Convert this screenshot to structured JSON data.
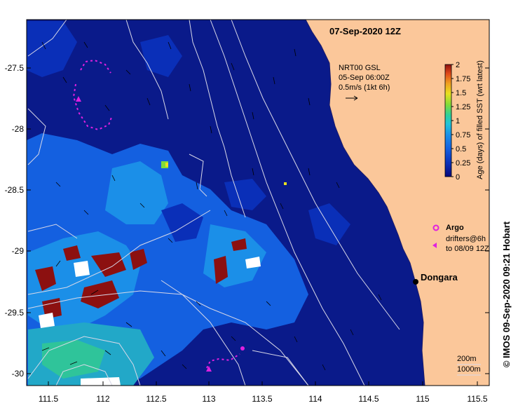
{
  "title": "07-Sep-2020 12Z",
  "credit": "© IMOS 09-Sep-2020 09:21 Hobart",
  "current_key": {
    "source": "NRT00 GSL",
    "date": "05-Sep 06:00Z",
    "scale": "0.5m/s (1kt 6h)"
  },
  "colorbar": {
    "label": "Age (days) of filled SST (wrt latest)",
    "ticks": [
      "0",
      "0.25",
      "0.5",
      "0.75",
      "1",
      "1.25",
      "1.5",
      "1.75",
      "2"
    ],
    "colors": [
      "#08087a",
      "#0a2fb8",
      "#1460e0",
      "#1b8fe8",
      "#22c4d8",
      "#2fd19a",
      "#7fdc3a",
      "#e8e020",
      "#f0a020",
      "#e04818",
      "#8c1010"
    ]
  },
  "legend": {
    "argo_label": "Argo",
    "drifters_line1": "drifters@6h",
    "drifters_line2": "to 08/09 12Z",
    "contour_200": "200m",
    "contour_1000": "1000m"
  },
  "place": {
    "name": "Dongara"
  },
  "axes": {
    "x_ticks": [
      "111.5",
      "112",
      "112.5",
      "113",
      "113.5",
      "114",
      "114.5",
      "115",
      "115.5"
    ],
    "y_ticks": [
      "-27.5",
      "-28",
      "-28.5",
      "-29",
      "-29.5",
      "-30"
    ]
  },
  "colors": {
    "land": "#fbc79a",
    "ocean_deep": "#0a1a8a",
    "argo": "#e020e0"
  }
}
